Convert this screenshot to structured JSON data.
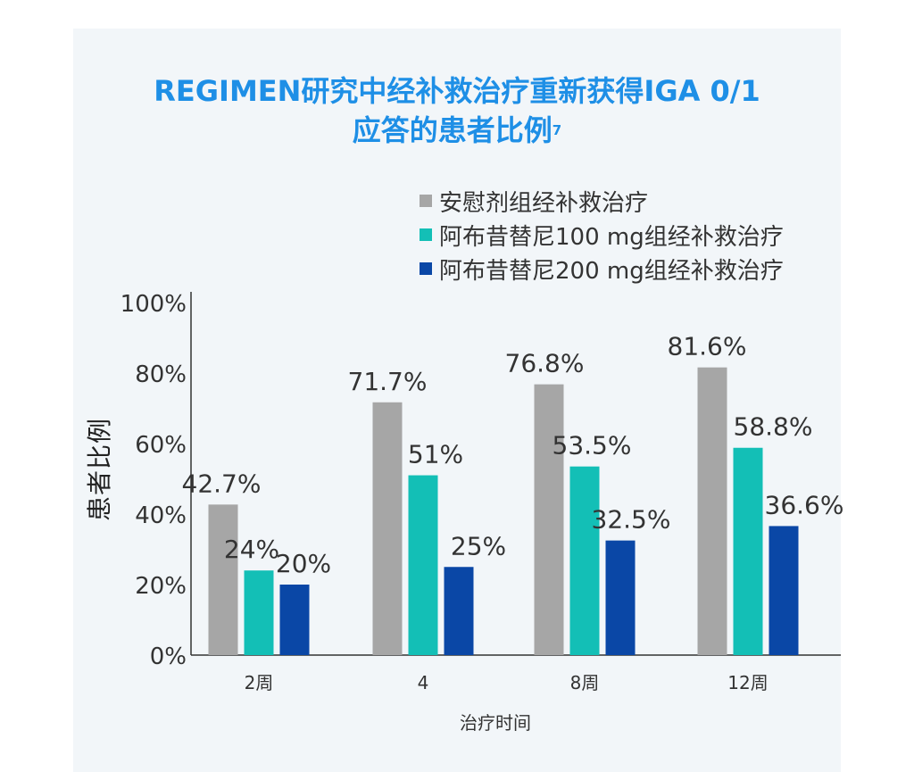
{
  "title": {
    "line1": "REGIMEN研究中经补救治疗重新获得IGA 0/1",
    "line2": "应答的患者比例",
    "superscript": "7"
  },
  "legend": [
    {
      "label": "安慰剂组经补救治疗",
      "color": "#a6a6a6"
    },
    {
      "label": "阿布昔替尼100 mg组经补救治疗",
      "color": "#13bfb6"
    },
    {
      "label": "阿布昔替尼200 mg组经补救治疗",
      "color": "#0a47a6"
    }
  ],
  "chart_data": {
    "type": "bar",
    "title": "REGIMEN研究中经补救治疗重新获得IGA 0/1应答的患者比例",
    "xlabel": "治疗时间",
    "ylabel": "患者比例",
    "categories": [
      "2周",
      "4",
      "8周",
      "12周"
    ],
    "series": [
      {
        "name": "安慰剂组经补救治疗",
        "values": [
          42.7,
          71.7,
          76.8,
          81.6
        ],
        "labels": [
          "42.7%",
          "71.7%",
          "76.8%",
          "81.6%"
        ],
        "color": "#a6a6a6"
      },
      {
        "name": "阿布昔替尼100 mg组经补救治疗",
        "values": [
          24,
          51,
          53.5,
          58.8
        ],
        "labels": [
          "24%",
          "51%",
          "53.5%",
          "58.8%"
        ],
        "color": "#13bfb6"
      },
      {
        "name": "阿布昔替尼200 mg组经补救治疗",
        "values": [
          20,
          25,
          32.5,
          36.6
        ],
        "labels": [
          "20%",
          "25%",
          "32.5%",
          "36.6%"
        ],
        "color": "#0a47a6"
      }
    ],
    "ylim": [
      0,
      100
    ],
    "yticks": [
      "0%",
      "20%",
      "40%",
      "60%",
      "80%",
      "100%"
    ],
    "grid": false,
    "legend_position": "top-right"
  }
}
